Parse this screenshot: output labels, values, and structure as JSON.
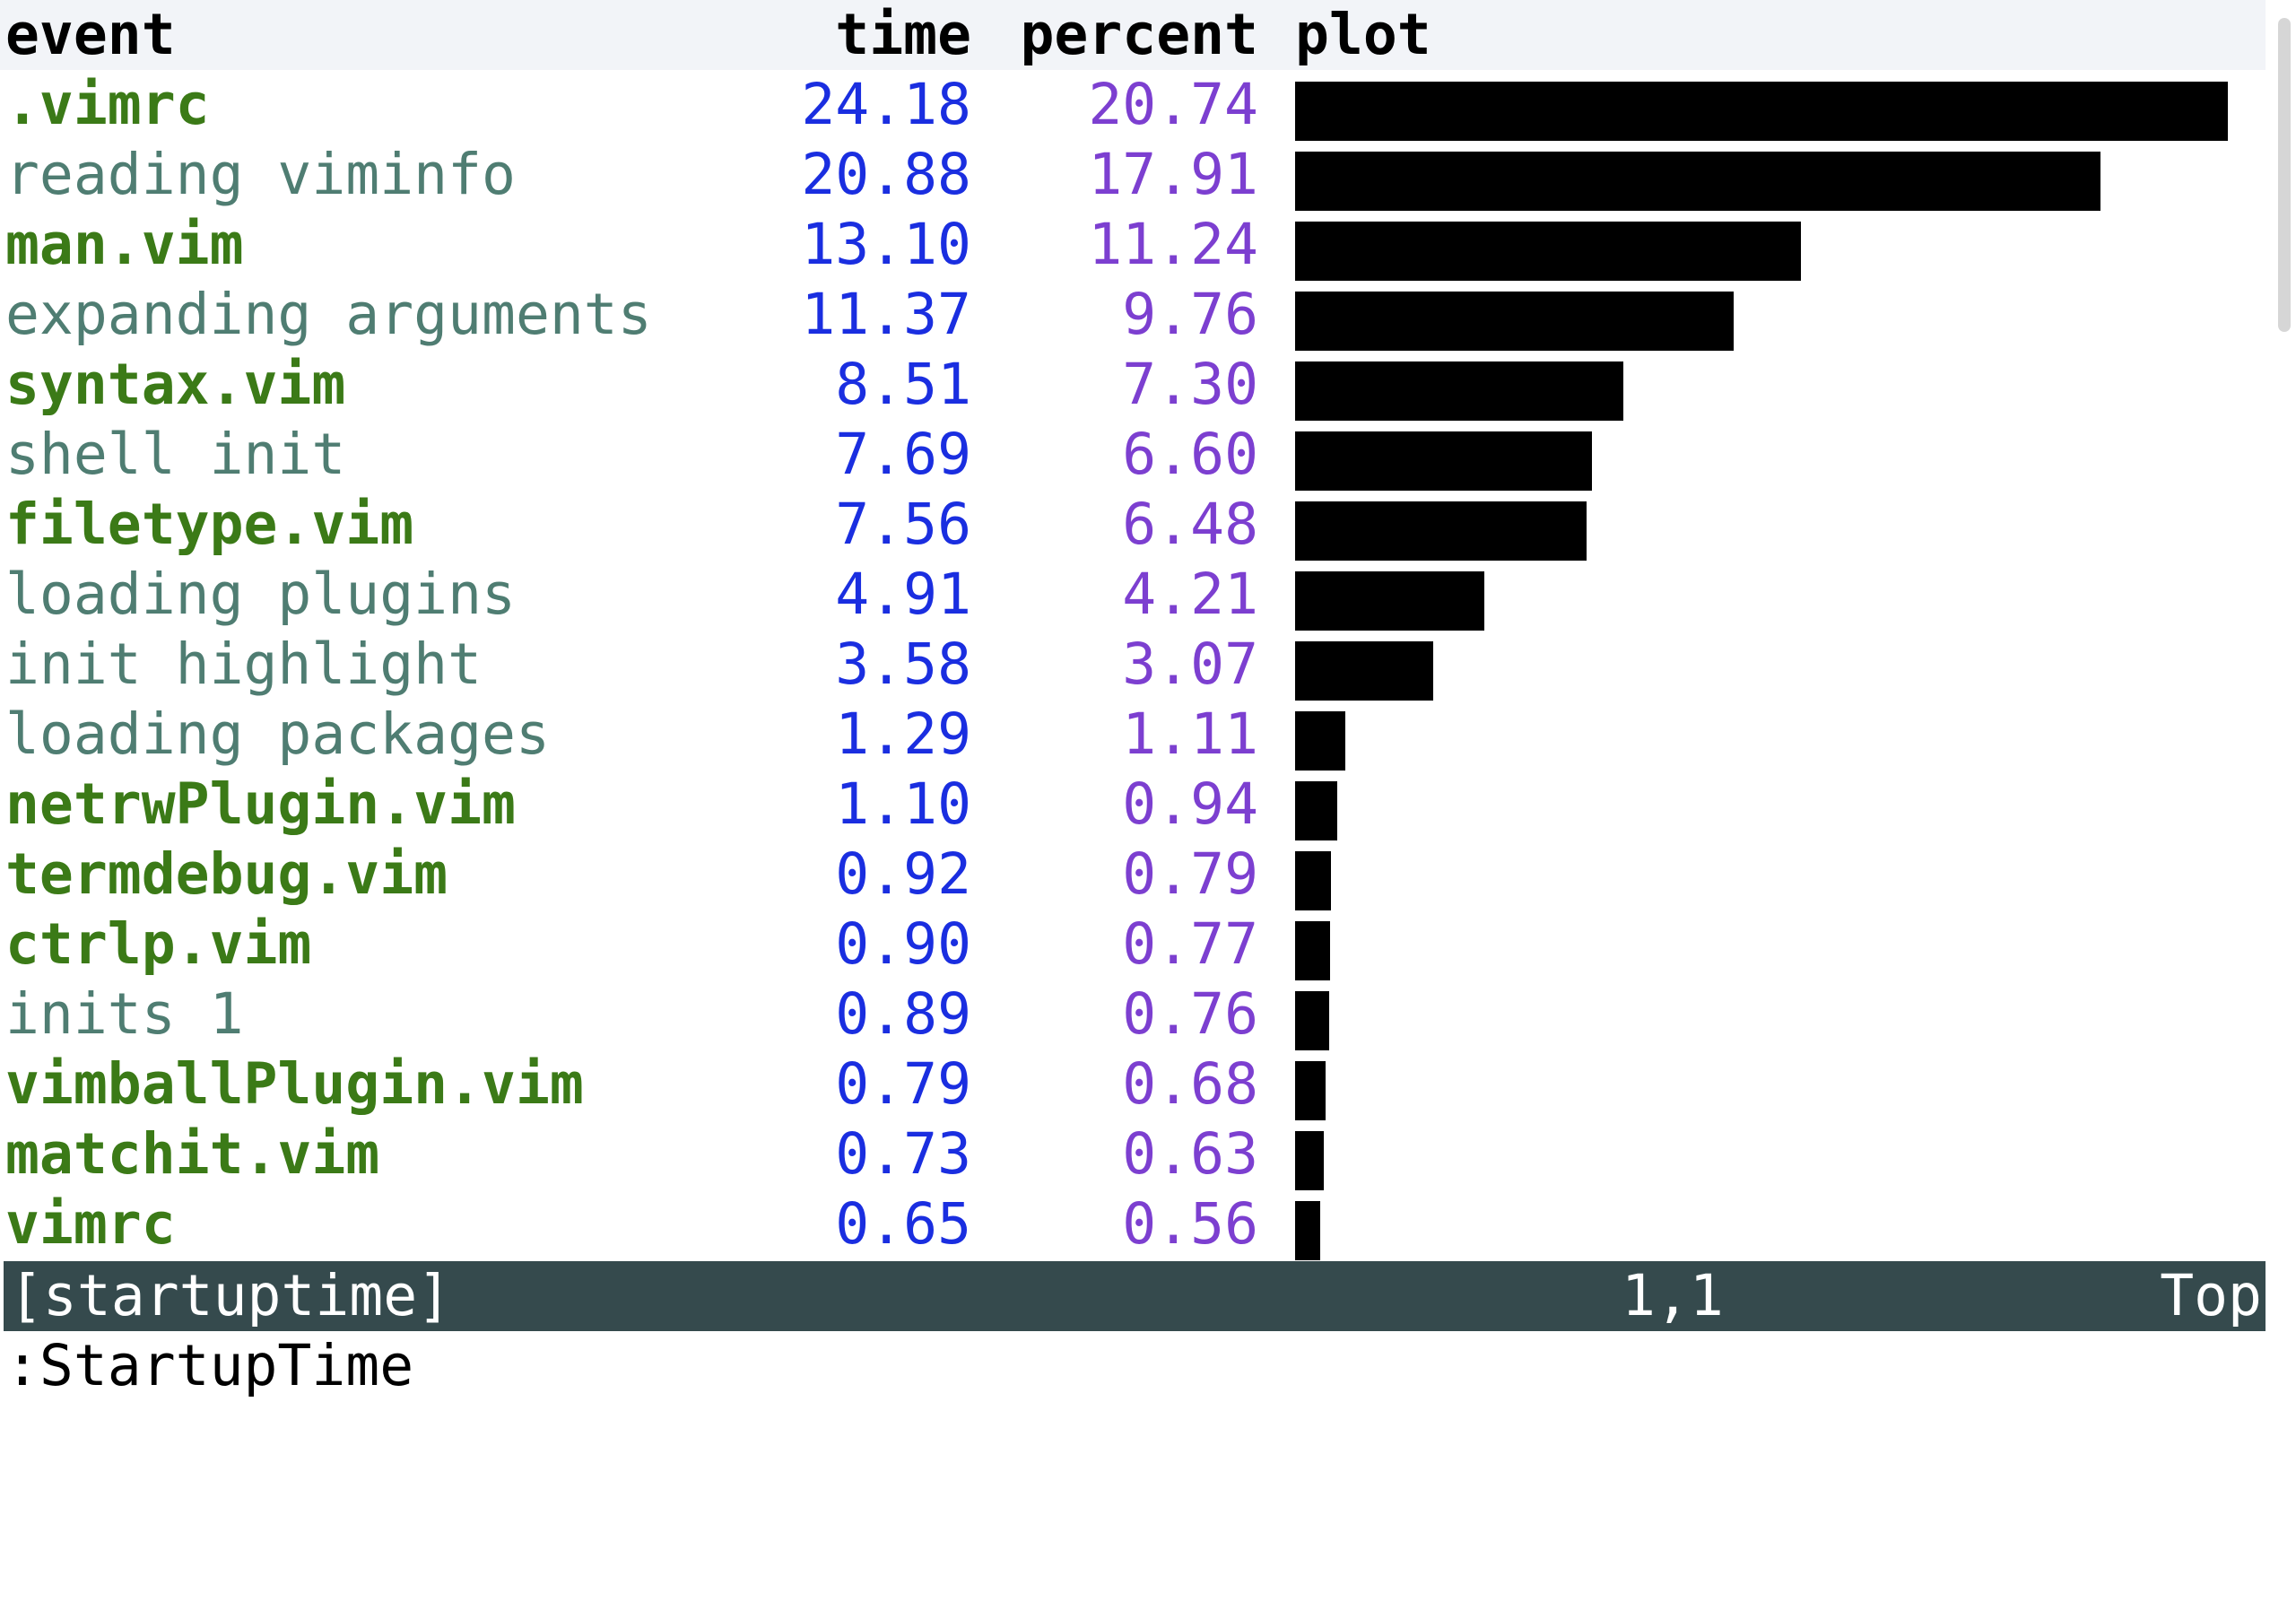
{
  "header": {
    "event": "event",
    "time": "time",
    "percent": "percent",
    "plot": "plot"
  },
  "rows": [
    {
      "event": ".vimrc",
      "kind": "file",
      "time": "24.18",
      "percent": "20.74",
      "plot": 20.74
    },
    {
      "event": "reading viminfo",
      "kind": "op",
      "time": "20.88",
      "percent": "17.91",
      "plot": 17.91
    },
    {
      "event": "man.vim",
      "kind": "file",
      "time": "13.10",
      "percent": "11.24",
      "plot": 11.24
    },
    {
      "event": "expanding arguments",
      "kind": "op",
      "time": "11.37",
      "percent": "9.76",
      "plot": 9.76
    },
    {
      "event": "syntax.vim",
      "kind": "file",
      "time": "8.51",
      "percent": "7.30",
      "plot": 7.3
    },
    {
      "event": "shell init",
      "kind": "op",
      "time": "7.69",
      "percent": "6.60",
      "plot": 6.6
    },
    {
      "event": "filetype.vim",
      "kind": "file",
      "time": "7.56",
      "percent": "6.48",
      "plot": 6.48
    },
    {
      "event": "loading plugins",
      "kind": "op",
      "time": "4.91",
      "percent": "4.21",
      "plot": 4.21
    },
    {
      "event": "init highlight",
      "kind": "op",
      "time": "3.58",
      "percent": "3.07",
      "plot": 3.07
    },
    {
      "event": "loading packages",
      "kind": "op",
      "time": "1.29",
      "percent": "1.11",
      "plot": 1.11
    },
    {
      "event": "netrwPlugin.vim",
      "kind": "file",
      "time": "1.10",
      "percent": "0.94",
      "plot": 0.94
    },
    {
      "event": "termdebug.vim",
      "kind": "file",
      "time": "0.92",
      "percent": "0.79",
      "plot": 0.79
    },
    {
      "event": "ctrlp.vim",
      "kind": "file",
      "time": "0.90",
      "percent": "0.77",
      "plot": 0.77
    },
    {
      "event": "inits 1",
      "kind": "op",
      "time": "0.89",
      "percent": "0.76",
      "plot": 0.76
    },
    {
      "event": "vimballPlugin.vim",
      "kind": "file",
      "time": "0.79",
      "percent": "0.68",
      "plot": 0.68
    },
    {
      "event": "matchit.vim",
      "kind": "file",
      "time": "0.73",
      "percent": "0.63",
      "plot": 0.63
    },
    {
      "event": "vimrc",
      "kind": "file",
      "time": "0.65",
      "percent": "0.56",
      "plot": 0.56
    }
  ],
  "statusline": {
    "buffer": "[startuptime]",
    "position": "1,1",
    "scroll": "Top"
  },
  "cmdline": ":StartupTime",
  "colors": {
    "file_event": "#3b7a17",
    "op_event": "#4f7d72",
    "time": "#1a2ee0",
    "percent": "#7c3fd0",
    "bar": "#000000",
    "statusline_bg": "#354a4d"
  }
}
